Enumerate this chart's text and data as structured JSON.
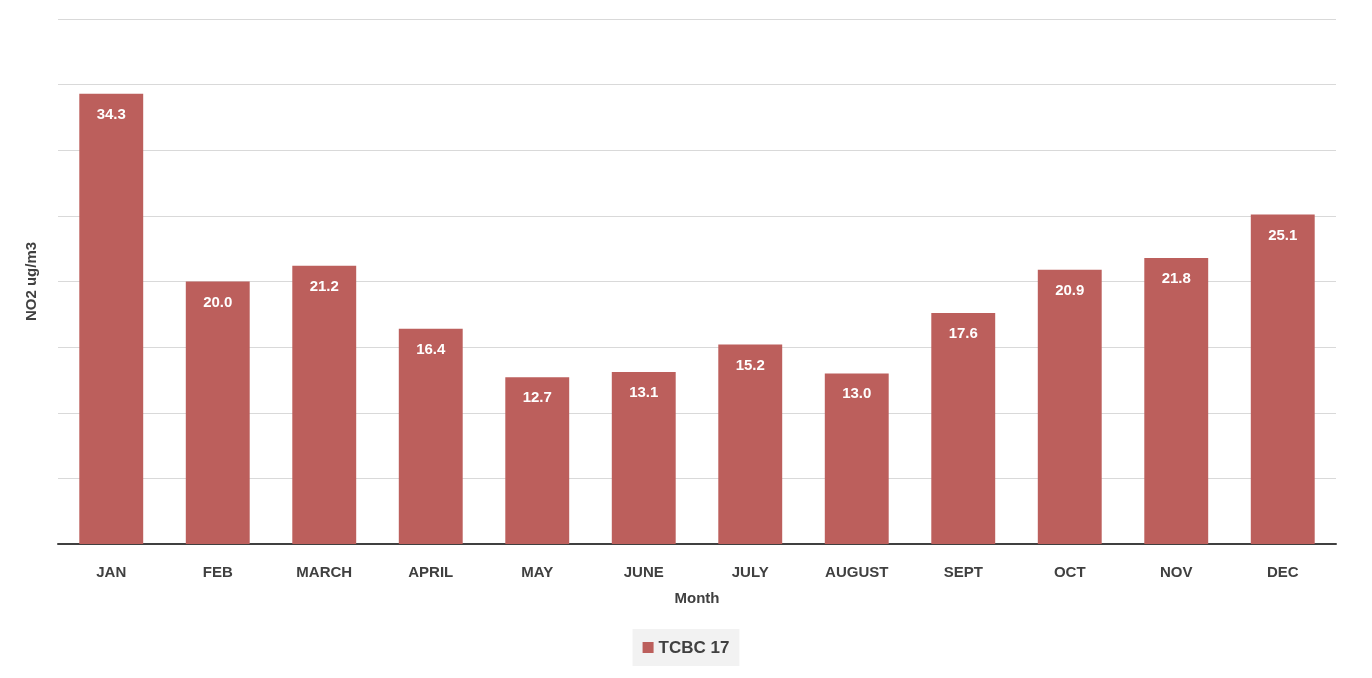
{
  "chart_data": {
    "type": "bar",
    "xlabel": "Month",
    "ylabel": "NO2 ug/m3",
    "categories": [
      "JAN",
      "FEB",
      "MARCH",
      "APRIL",
      "MAY",
      "JUNE",
      "JULY",
      "AUGUST",
      "SEPT",
      "OCT",
      "NOV",
      "DEC"
    ],
    "series": [
      {
        "name": "TCBC 17",
        "color": "#bc5f5c",
        "values": [
          34.3,
          20.0,
          21.2,
          16.4,
          12.7,
          13.1,
          15.2,
          13.0,
          17.6,
          20.9,
          21.8,
          25.1
        ],
        "value_labels": [
          "34.3",
          "20.0",
          "21.2",
          "16.4",
          "12.7",
          "13.1",
          "15.2",
          "13.0",
          "17.6",
          "20.9",
          "21.8",
          "25.1"
        ]
      }
    ],
    "ylim": [
      0,
      40
    ],
    "yticks": [
      {
        "value": 0,
        "label": null
      },
      {
        "value": 5,
        "label": null
      },
      {
        "value": 10,
        "label": null
      },
      {
        "value": 15,
        "label": null
      },
      {
        "value": 20,
        "label": null
      },
      {
        "value": 25,
        "label": null
      },
      {
        "value": 30,
        "label": null
      },
      {
        "value": 35,
        "label": null
      },
      {
        "value": 40,
        "label": null
      }
    ],
    "grid": "y",
    "legend": "bottom",
    "tick_labels": "x"
  }
}
